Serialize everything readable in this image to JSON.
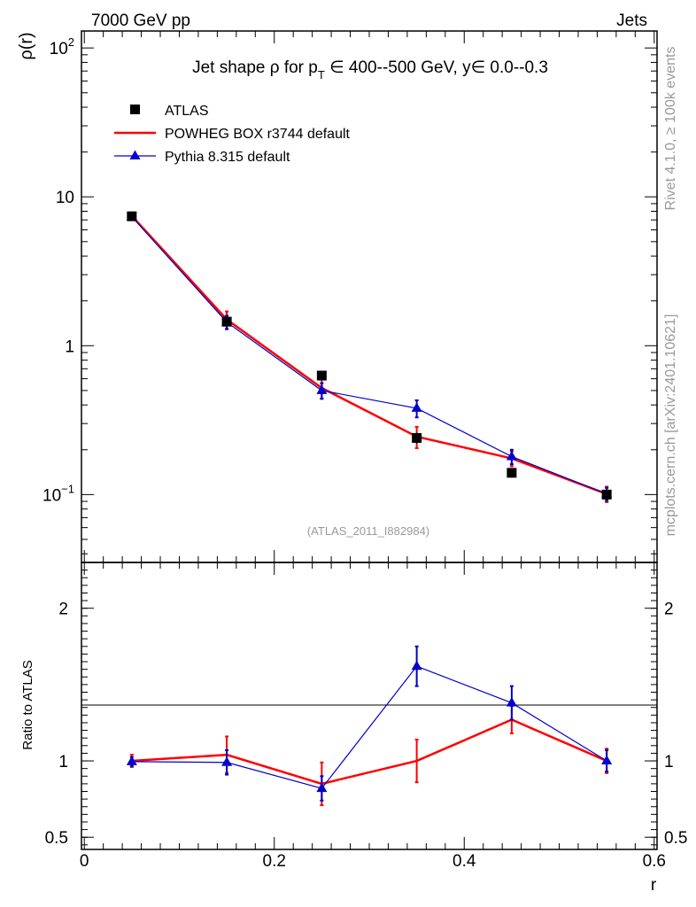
{
  "header": {
    "left": "7000 GeV pp",
    "right": "Jets"
  },
  "side_text": {
    "rivet": "Rivet 4.1.0, ≥ 100k events",
    "mcplots": "mcplots.cern.ch [arXiv:2401.10621]"
  },
  "colors": {
    "atlas": "#000000",
    "powheg": "#ff0000",
    "pythia": "#0000cc"
  },
  "chart_data": [
    {
      "type": "line",
      "title": "Jet shape ρ for p_T ∈ 400--500 GeV, y∈ 0.0--0.3",
      "title_parts": {
        "prefix": "Jet shape ρ for p",
        "sub": "T",
        "suffix": " ∈ 400--500 GeV, y∈ 0.0--0.3"
      },
      "ylabel": "ρ(r)",
      "xlabel": "",
      "yscale": "log",
      "ylim": [
        0.035,
        130
      ],
      "xlim": [
        -0.003,
        0.603
      ],
      "yticks": [
        {
          "v": 0.1,
          "base": "10",
          "exp": "−1"
        },
        {
          "v": 1,
          "base": "1",
          "exp": ""
        },
        {
          "v": 10,
          "base": "10",
          "exp": ""
        },
        {
          "v": 100,
          "base": "10",
          "exp": "2"
        }
      ],
      "watermark": "(ATLAS_2011_I882984)",
      "legend": [
        "ATLAS",
        "POWHEG BOX r3744 default",
        "Pythia 8.315 default"
      ],
      "x": [
        0.05,
        0.15,
        0.25,
        0.35,
        0.45,
        0.55
      ],
      "series": [
        {
          "name": "ATLAS",
          "values": [
            7.4,
            1.45,
            0.63,
            0.24,
            0.14,
            0.1
          ],
          "errors": [
            0.15,
            0.06,
            0.04,
            0.02,
            0.01,
            0.008
          ]
        },
        {
          "name": "POWHEG BOX r3744 default",
          "values": [
            7.45,
            1.5,
            0.52,
            0.245,
            0.175,
            0.101
          ],
          "errors": [
            0.25,
            0.2,
            0.08,
            0.04,
            0.02,
            0.012
          ]
        },
        {
          "name": "Pythia 8.315 default",
          "values": [
            7.35,
            1.44,
            0.5,
            0.38,
            0.18,
            0.101
          ],
          "errors": [
            0.1,
            0.15,
            0.06,
            0.05,
            0.02,
            0.01
          ]
        }
      ]
    },
    {
      "type": "line",
      "ylabel": "Ratio to ATLAS",
      "xlabel": "r",
      "ylim": [
        0.42,
        2.3
      ],
      "xlim": [
        -0.003,
        0.603
      ],
      "yticks": [
        {
          "v": 0.5,
          "label": "0.5"
        },
        {
          "v": 1,
          "label": "1"
        },
        {
          "v": 2,
          "label": "2"
        }
      ],
      "xticks": [
        {
          "v": 0,
          "label": "0"
        },
        {
          "v": 0.2,
          "label": "0.2"
        },
        {
          "v": 0.4,
          "label": "0.4"
        },
        {
          "v": 0.6,
          "label": "0.6"
        }
      ],
      "x": [
        0.05,
        0.15,
        0.25,
        0.35,
        0.45,
        0.55
      ],
      "series": [
        {
          "name": "POWHEG BOX r3744 default",
          "values": [
            1.0,
            1.04,
            0.85,
            1.0,
            1.27,
            1.0
          ],
          "errors": [
            0.04,
            0.12,
            0.14,
            0.14,
            0.09,
            0.08
          ]
        },
        {
          "name": "Pythia 8.315 default",
          "values": [
            0.995,
            0.99,
            0.82,
            1.62,
            1.38,
            1.0
          ],
          "errors": [
            0.03,
            0.08,
            0.08,
            0.13,
            0.11,
            0.07
          ]
        }
      ]
    }
  ]
}
